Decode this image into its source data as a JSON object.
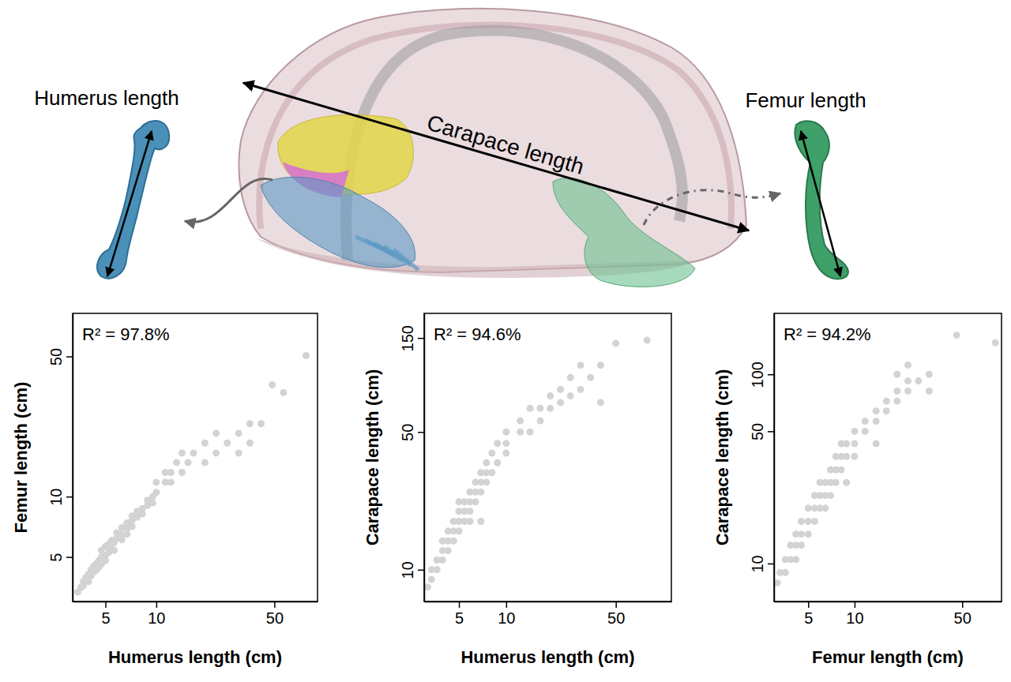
{
  "diagram": {
    "labels": [
      "Humerus length",
      "Carapace length",
      "Femur length"
    ]
  },
  "chart_data": [
    {
      "type": "scatter",
      "x_label": "Humerus length (cm)",
      "y_label": "Femur length (cm)",
      "annotations": [
        "R² = 97.8%"
      ],
      "log": true,
      "marker": "circle",
      "color": "#d3d3d3",
      "xlim": [
        3.2,
        90
      ],
      "ylim": [
        3,
        82
      ],
      "xticks": [
        5,
        10,
        50
      ],
      "yticks": [
        5,
        10,
        50
      ],
      "x": [
        3.43,
        3.57,
        3.7,
        3.7,
        3.83,
        3.97,
        3.97,
        4.11,
        4.11,
        4.26,
        4.26,
        4.41,
        4.41,
        4.57,
        4.57,
        4.73,
        4.73,
        4.73,
        5,
        5,
        5,
        5.25,
        5.25,
        5.44,
        5.44,
        5.63,
        5.63,
        5.83,
        5.83,
        6.25,
        6.25,
        6.25,
        6.71,
        6.71,
        6.71,
        7.19,
        7.19,
        7.19,
        7.71,
        7.71,
        8.27,
        8.27,
        8.87,
        8.87,
        9.52,
        9.52,
        10,
        10,
        11.3,
        11.3,
        12.2,
        12.2,
        13.2,
        14.2,
        14.2,
        15.4,
        16.6,
        19.4,
        19.4,
        22.6,
        22.6,
        26.3,
        30.7,
        30.7,
        35.8,
        35.8,
        41.7,
        48.6,
        56.6,
        77
      ],
      "values": [
        3.34,
        3.52,
        3.6,
        3.77,
        3.95,
        3.77,
        4.1,
        4.03,
        4.31,
        4.2,
        4.5,
        4.31,
        4.61,
        4.8,
        4.45,
        5,
        4.61,
        5.4,
        5.1,
        4.8,
        5.65,
        5.28,
        5.8,
        5.5,
        6.04,
        5.9,
        5.4,
        6.2,
        6.6,
        6.46,
        6.1,
        7,
        6.91,
        7.39,
        6.5,
        7.6,
        7.1,
        8,
        7.9,
        8.45,
        8.7,
        8.2,
        9.04,
        9.6,
        10,
        9.3,
        11.8,
        10.5,
        11.8,
        13.2,
        13.2,
        11.8,
        14.8,
        13.2,
        16.5,
        14.8,
        16.5,
        14.8,
        18.5,
        16.5,
        20.7,
        18.5,
        20.7,
        16.5,
        23.1,
        18.5,
        23.1,
        36.1,
        33,
        50.5
      ]
    },
    {
      "type": "scatter",
      "x_label": "Humerus length (cm)",
      "y_label": "Carapace length (cm)",
      "annotations": [
        "R² = 94.6%"
      ],
      "log": true,
      "marker": "circle",
      "color": "#d3d3d3",
      "xlim": [
        3,
        113
      ],
      "ylim": [
        6.9,
        200
      ],
      "xticks": [
        5,
        10,
        50
      ],
      "yticks": [
        10,
        50,
        150
      ],
      "x": [
        3.16,
        3.34,
        3.34,
        3.62,
        3.62,
        3.93,
        3.93,
        3.93,
        4.26,
        4.26,
        4.26,
        4.62,
        4.62,
        4.62,
        5,
        5,
        5,
        5,
        5.42,
        5.42,
        5.42,
        5.87,
        5.87,
        5.87,
        5.87,
        6.37,
        6.37,
        6.37,
        6.9,
        6.9,
        6.9,
        6.9,
        7.48,
        7.48,
        7.48,
        8.11,
        8.11,
        8.79,
        8.79,
        10,
        10,
        10,
        12.3,
        12.3,
        14.2,
        14.2,
        16.5,
        16.5,
        19.1,
        19.1,
        22.2,
        22.2,
        25.7,
        25.7,
        29.8,
        29.8,
        34.5,
        40,
        40,
        50,
        79
      ],
      "values": [
        8.16,
        8.93,
        10,
        10,
        11.2,
        11.2,
        12.5,
        14,
        12.5,
        14,
        15.7,
        14,
        15.7,
        17.6,
        15.7,
        17.6,
        19.8,
        22.1,
        17.6,
        19.8,
        22.1,
        19.8,
        22.1,
        24.8,
        17.6,
        22.1,
        24.8,
        27.8,
        24.8,
        27.8,
        31.1,
        17.6,
        27.8,
        31.1,
        34.9,
        31.1,
        39.1,
        34.9,
        43.8,
        39.1,
        43.8,
        50,
        50,
        57,
        50,
        65.9,
        57,
        65.9,
        65.9,
        76.2,
        70.6,
        82.2,
        76.2,
        94.5,
        82.2,
        109,
        94.5,
        109,
        70.6,
        141,
        146
      ]
    },
    {
      "type": "scatter",
      "x_label": "Femur length (cm)",
      "y_label": "Carapace length (cm)",
      "annotations": [
        "R² = 94.2%"
      ],
      "log": true,
      "marker": "circle",
      "color": "#d3d3d3",
      "xlim": [
        3,
        90
      ],
      "ylim": [
        6.3,
        210
      ],
      "xticks": [
        5,
        10,
        50
      ],
      "yticks": [
        10,
        50,
        100
      ],
      "x": [
        3.15,
        3.28,
        3.55,
        3.55,
        3.84,
        3.84,
        4.16,
        4.16,
        4.16,
        4.51,
        4.51,
        4.51,
        5,
        5,
        5,
        5.5,
        5.5,
        5.5,
        5.96,
        5.96,
        5.96,
        6.45,
        6.45,
        6.45,
        6.98,
        6.98,
        6.98,
        7.56,
        7.56,
        7.56,
        8.19,
        8.19,
        8.19,
        8.86,
        8.86,
        8.86,
        10,
        10,
        10,
        11.7,
        11.7,
        13.8,
        13.8,
        13.8,
        16.1,
        16.1,
        18.9,
        18.9,
        18.9,
        22.2,
        22.2,
        22.2,
        26,
        30.5,
        30.5,
        46,
        82
      ],
      "values": [
        7.9,
        8.96,
        8.96,
        10.5,
        10.5,
        12.5,
        12.5,
        14.3,
        10.5,
        12.5,
        14.3,
        16.7,
        14.3,
        16.7,
        19.6,
        16.7,
        19.6,
        22.9,
        19.6,
        22.9,
        26.8,
        22.9,
        26.8,
        19.6,
        26.8,
        31.3,
        22.9,
        26.8,
        31.3,
        36.8,
        31.3,
        36.8,
        43,
        36.8,
        43,
        26.8,
        43,
        50,
        36.8,
        50,
        56.5,
        56.5,
        64,
        43,
        64,
        72.2,
        72.2,
        81.6,
        100,
        81.6,
        92.3,
        112,
        92.3,
        81.6,
        100,
        161,
        147
      ]
    }
  ]
}
